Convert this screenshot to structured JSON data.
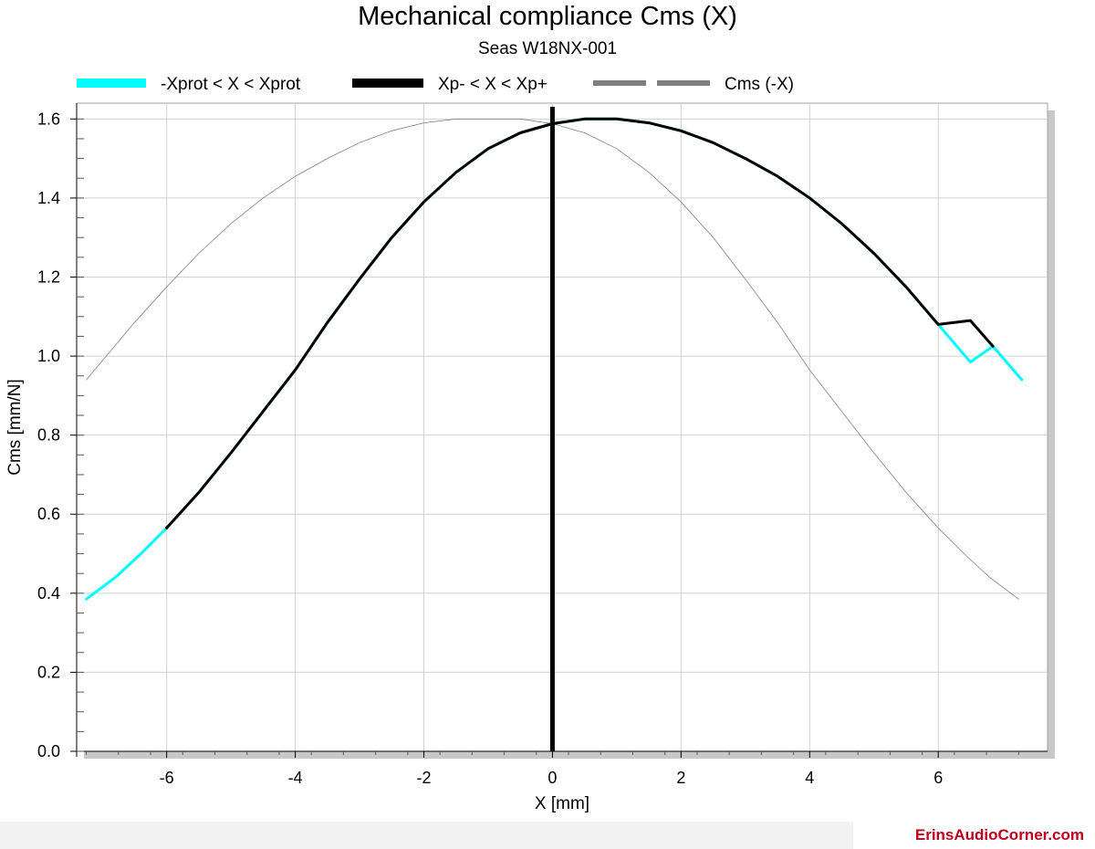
{
  "chart_data": {
    "type": "line",
    "title": "Mechanical compliance Cms (X)",
    "subtitle": "Seas W18NX-001",
    "xlabel": "X [mm]",
    "ylabel": "Cms [mm/N]",
    "xlim": [
      -7.4,
      7.7
    ],
    "ylim": [
      0,
      1.64
    ],
    "xticks": [
      -6,
      -4,
      -2,
      0,
      2,
      4,
      6
    ],
    "xtick_labels": [
      "-6",
      "-4",
      "-2",
      "0",
      "2",
      "4",
      "6"
    ],
    "yticks": [
      0,
      0.2,
      0.4,
      0.6,
      0.8,
      1.0,
      1.2,
      1.4,
      1.6
    ],
    "ytick_labels": [
      "0.0",
      "0.2",
      "0.4",
      "0.6",
      "0.8",
      "1.0",
      "1.2",
      "1.4",
      "1.6"
    ],
    "grid": true,
    "legend_position": "top",
    "zero_line_x": 0,
    "series": [
      {
        "name": "-Xprot < X < Xprot",
        "color": "#00ffff",
        "style": "thick",
        "x": [
          -7.25,
          -6.8,
          -6.4,
          -6.0,
          -5.5,
          -5.0,
          -4.5,
          -4.0,
          -3.5,
          -3.0,
          -2.5,
          -2.0,
          -1.5,
          -1.0,
          -0.5,
          0.0,
          0.5,
          1.0,
          1.5,
          2.0,
          2.5,
          3.0,
          3.5,
          4.0,
          4.5,
          5.0,
          5.5,
          6.0,
          6.5,
          6.85,
          7.3
        ],
        "y": [
          0.385,
          0.44,
          0.5,
          0.565,
          0.655,
          0.755,
          0.86,
          0.965,
          1.085,
          1.195,
          1.3,
          1.39,
          1.465,
          1.525,
          1.565,
          1.588,
          1.6,
          1.6,
          1.59,
          1.57,
          1.54,
          1.5,
          1.455,
          1.4,
          1.335,
          1.26,
          1.175,
          1.08,
          0.985,
          1.025,
          0.94
        ]
      },
      {
        "name": "Xp- < X < Xp+",
        "color": "#000000",
        "style": "thick",
        "x": [
          -6.0,
          -5.5,
          -5.0,
          -4.5,
          -4.0,
          -3.5,
          -3.0,
          -2.5,
          -2.0,
          -1.5,
          -1.0,
          -0.5,
          0.0,
          0.5,
          1.0,
          1.5,
          2.0,
          2.5,
          3.0,
          3.5,
          4.0,
          4.5,
          5.0,
          5.5,
          6.0,
          6.5,
          6.85
        ],
        "y": [
          0.565,
          0.655,
          0.755,
          0.86,
          0.965,
          1.085,
          1.195,
          1.3,
          1.39,
          1.465,
          1.525,
          1.565,
          1.588,
          1.6,
          1.6,
          1.59,
          1.57,
          1.54,
          1.5,
          1.455,
          1.4,
          1.335,
          1.26,
          1.175,
          1.08,
          1.09,
          1.025
        ]
      },
      {
        "name": "Cms (-X)",
        "color": "#808080",
        "style": "thin",
        "x": [
          -7.25,
          -6.5,
          -6.0,
          -5.5,
          -5.0,
          -4.5,
          -4.0,
          -3.5,
          -3.0,
          -2.5,
          -2.0,
          -1.5,
          -1.0,
          -0.5,
          0.0,
          0.5,
          1.0,
          1.5,
          2.0,
          2.5,
          3.0,
          3.5,
          4.0,
          4.5,
          5.0,
          5.5,
          6.0,
          6.4,
          6.8,
          7.25
        ],
        "y": [
          0.94,
          1.085,
          1.175,
          1.26,
          1.335,
          1.4,
          1.455,
          1.5,
          1.54,
          1.57,
          1.59,
          1.6,
          1.6,
          1.6,
          1.588,
          1.565,
          1.525,
          1.465,
          1.39,
          1.3,
          1.195,
          1.085,
          0.965,
          0.86,
          0.755,
          0.655,
          0.565,
          0.5,
          0.44,
          0.385
        ]
      }
    ]
  },
  "footer": {
    "watermark": "ErinsAudioCorner.com"
  }
}
